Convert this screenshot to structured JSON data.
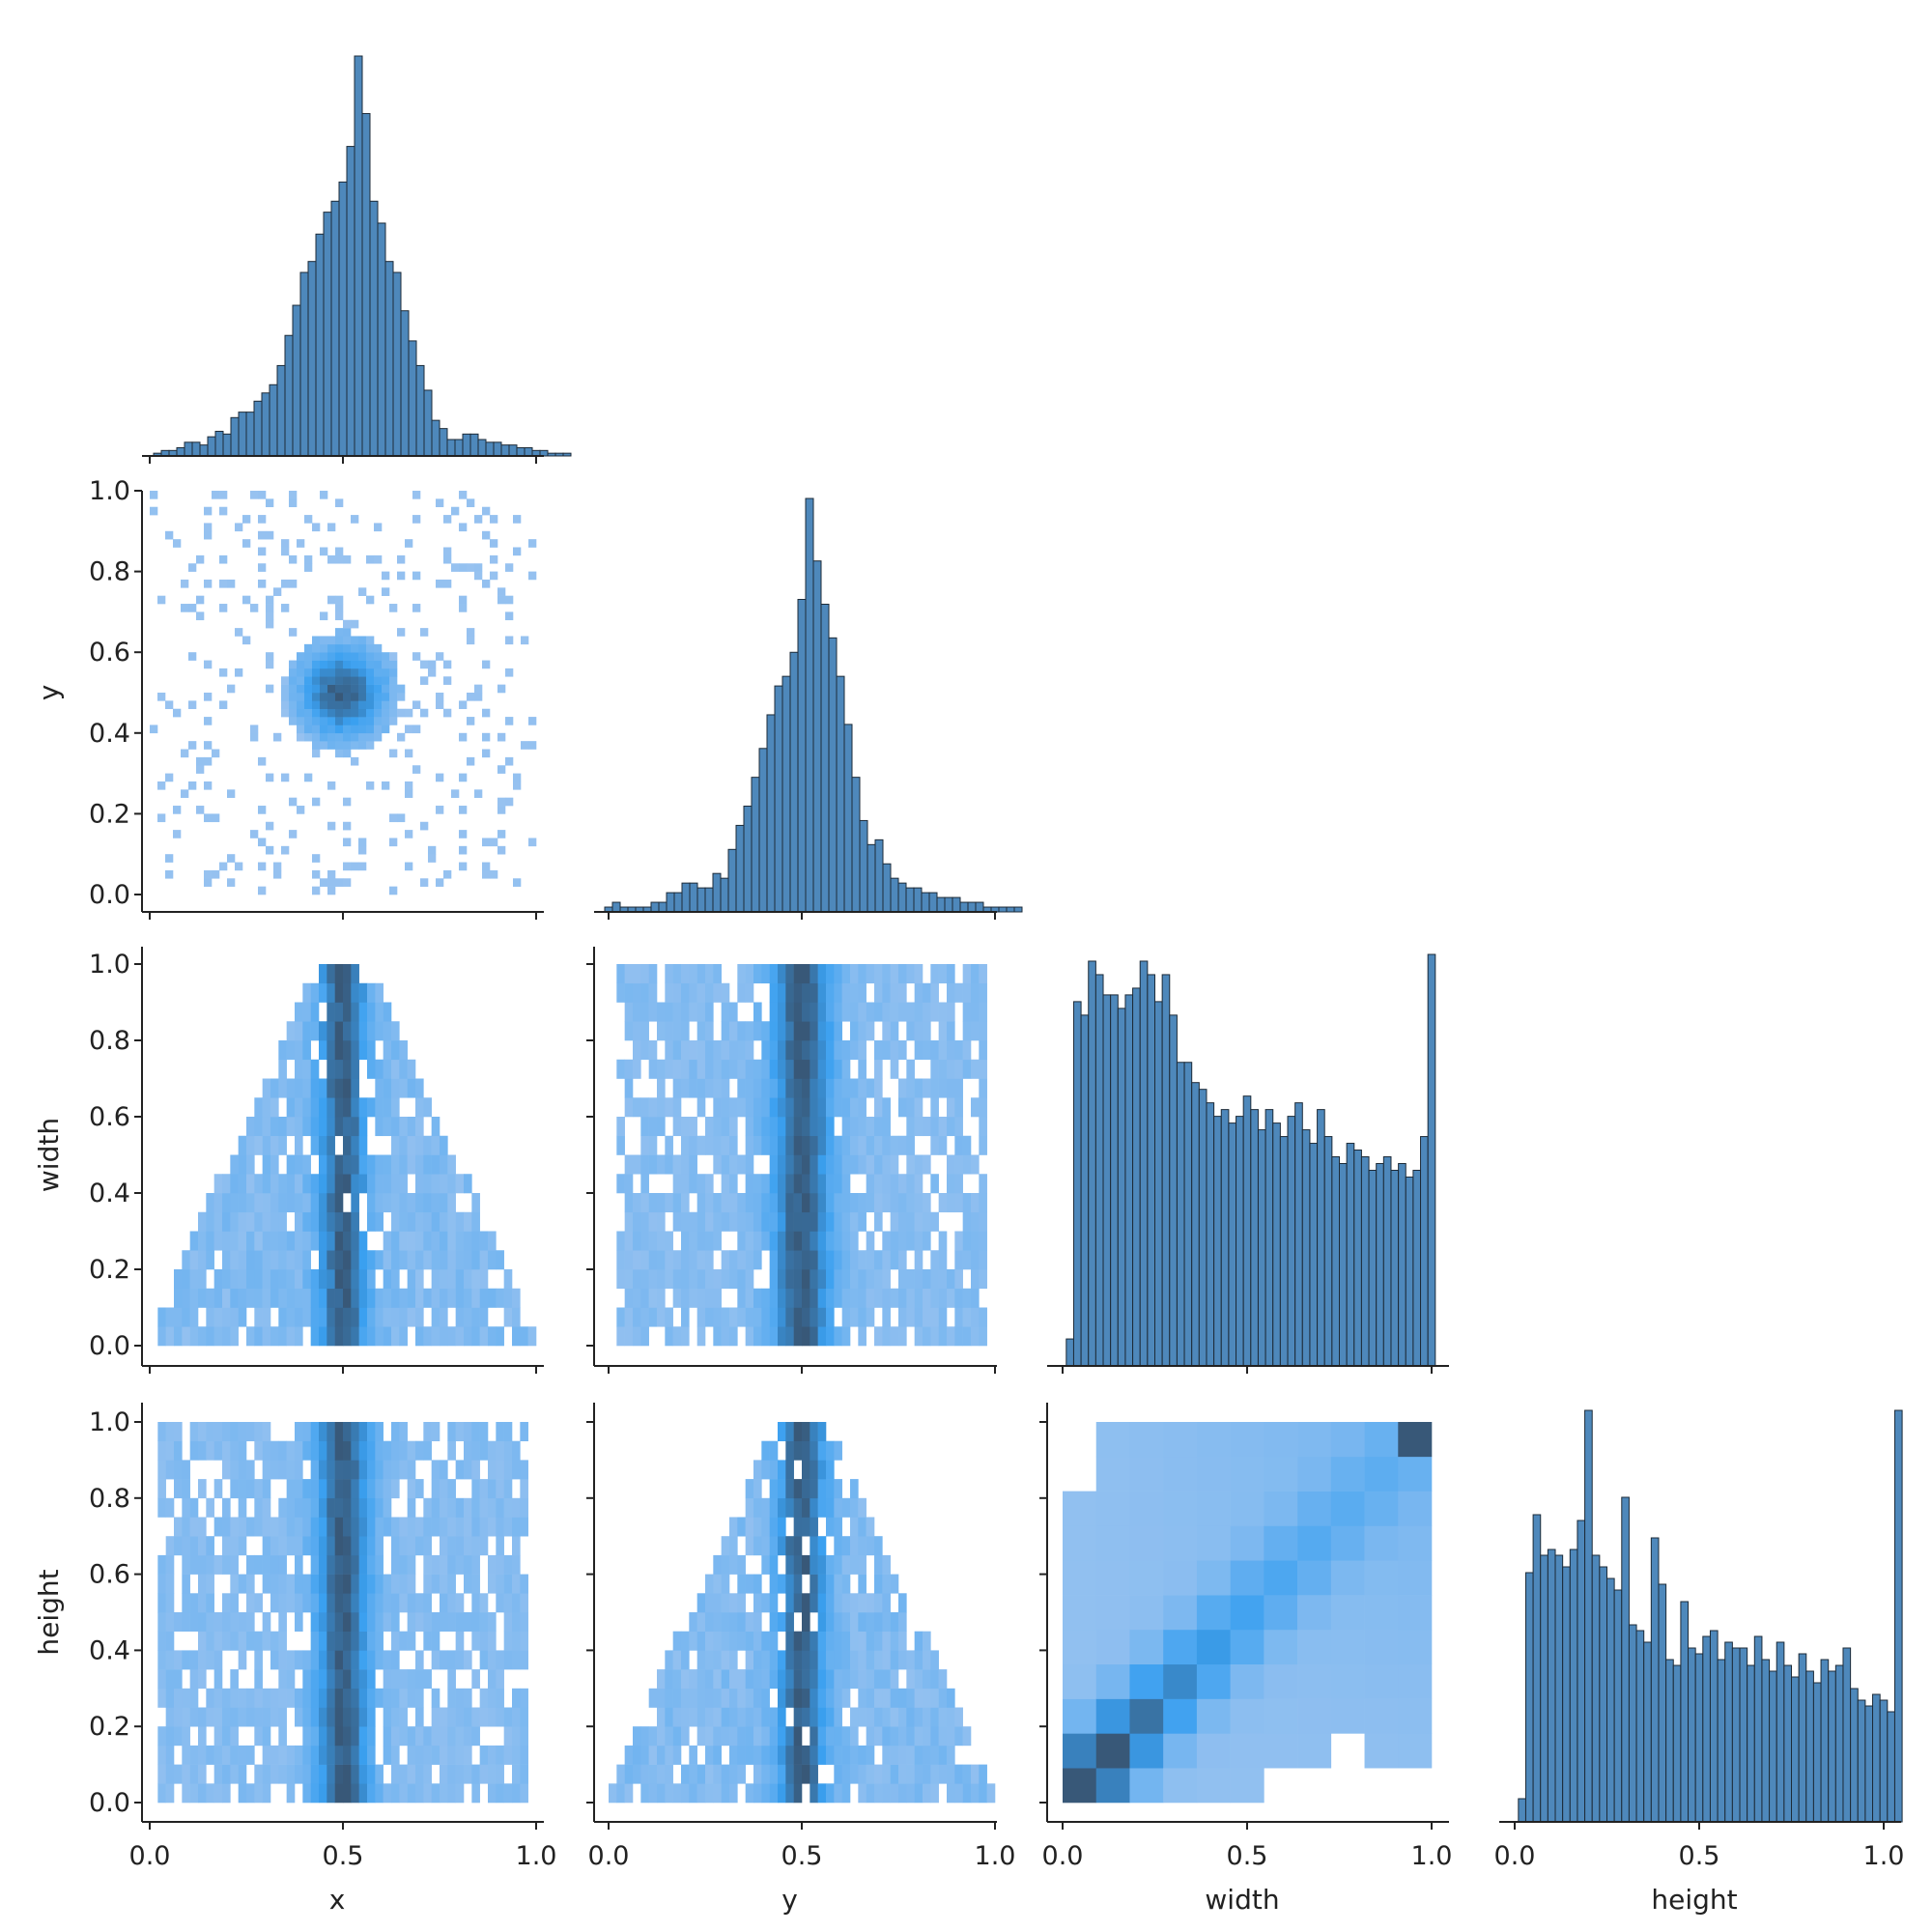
{
  "chart_data": [
    {
      "type": "bar",
      "panel": "x",
      "xlabel": "x",
      "xticks": [
        "0.0",
        "0.5",
        "1.0"
      ],
      "xlim": [
        0,
        1
      ],
      "bins": {
        "start": 0.0,
        "width": 0.02
      },
      "values": [
        0,
        1,
        2,
        2,
        3,
        5,
        5,
        4,
        7,
        9,
        8,
        14,
        16,
        16,
        20,
        23,
        26,
        33,
        44,
        55,
        67,
        71,
        81,
        89,
        93,
        100,
        113,
        146,
        125,
        93,
        85,
        71,
        67,
        53,
        42,
        33,
        24,
        13,
        10,
        6,
        6,
        8,
        8,
        6,
        5,
        5,
        4,
        4,
        3,
        3,
        2,
        2,
        1,
        1,
        1
      ]
    },
    {
      "type": "bar",
      "panel": "y",
      "xlabel": "y",
      "xticks": [
        "0.0",
        "0.5",
        "1.0"
      ],
      "xlim": [
        0,
        1
      ],
      "bins": {
        "start": 0.0,
        "width": 0.02
      },
      "values": [
        1,
        2,
        1,
        1,
        1,
        1,
        2,
        2,
        4,
        4,
        6,
        6,
        5,
        5,
        8,
        7,
        13,
        18,
        22,
        28,
        34,
        41,
        47,
        49,
        54,
        65,
        86,
        73,
        64,
        57,
        49,
        39,
        28,
        19,
        14,
        15,
        10,
        7,
        6,
        5,
        5,
        4,
        4,
        3,
        3,
        3,
        2,
        2,
        2,
        1,
        1,
        1,
        1,
        1
      ]
    },
    {
      "type": "bar",
      "panel": "width",
      "xlabel": "width",
      "xticks": [
        "0.0",
        "0.5",
        "1.0"
      ],
      "xlim": [
        0,
        1
      ],
      "bins": {
        "start": 0.0,
        "width": 0.02
      },
      "values": [
        0,
        4,
        54,
        52,
        60,
        58,
        55,
        55,
        53,
        55,
        56,
        60,
        58,
        54,
        58,
        52,
        45,
        45,
        42,
        41,
        39,
        37,
        38,
        36,
        37,
        40,
        38,
        35,
        38,
        36,
        34,
        37,
        39,
        35,
        33,
        38,
        34,
        31,
        30,
        33,
        32,
        31,
        29,
        30,
        31,
        29,
        30,
        28,
        29,
        34,
        61
      ]
    },
    {
      "type": "bar",
      "panel": "height",
      "xlabel": "height",
      "xticks": [
        "0.0",
        "0.5",
        "1.0"
      ],
      "xlim": [
        0,
        1
      ],
      "bins": {
        "start": 0.0,
        "width": 0.02
      },
      "values": [
        0,
        4,
        43,
        53,
        46,
        47,
        46,
        44,
        47,
        52,
        71,
        46,
        44,
        42,
        40,
        56,
        34,
        33,
        31,
        49,
        41,
        28,
        27,
        38,
        30,
        29,
        32,
        33,
        28,
        31,
        30,
        30,
        27,
        32,
        28,
        26,
        31,
        27,
        25,
        29,
        26,
        24,
        28,
        26,
        27,
        30,
        23,
        21,
        20,
        22,
        21,
        19,
        71
      ]
    },
    {
      "type": "heatmap",
      "panel": "y vs x",
      "xlabel": "",
      "ylabel": "y",
      "xlim": [
        0,
        1
      ],
      "ylim": [
        0,
        1
      ],
      "yticks": [
        "0.0",
        "0.2",
        "0.4",
        "0.6",
        "0.8",
        "1.0"
      ],
      "description": "2D histogram of y against x, density concentrated around (0.5, 0.5)"
    },
    {
      "type": "heatmap",
      "panel": "width vs x",
      "ylabel": "width",
      "xlim": [
        0,
        1
      ],
      "ylim": [
        0,
        1
      ],
      "yticks": [
        "0.0",
        "0.2",
        "0.4",
        "0.6",
        "0.8",
        "1.0"
      ],
      "description": "triangular 2D histogram: spread in x narrows as width increases"
    },
    {
      "type": "heatmap",
      "panel": "width vs y",
      "xlim": [
        0,
        1
      ],
      "ylim": [
        0,
        1
      ],
      "description": "2D histogram of width against y"
    },
    {
      "type": "heatmap",
      "panel": "height vs x",
      "ylabel": "height",
      "xlabel": "x",
      "xticks": [
        "0.0",
        "0.5",
        "1.0"
      ],
      "xlim": [
        0,
        1
      ],
      "ylim": [
        0,
        1
      ],
      "yticks": [
        "0.0",
        "0.2",
        "0.4",
        "0.6",
        "0.8",
        "1.0"
      ],
      "description": "2D histogram of height against x"
    },
    {
      "type": "heatmap",
      "panel": "height vs y",
      "xlabel": "y",
      "xticks": [
        "0.0",
        "0.5",
        "1.0"
      ],
      "xlim": [
        0,
        1
      ],
      "ylim": [
        0,
        1
      ],
      "description": "triangular 2D histogram: spread in y narrows as height increases"
    },
    {
      "type": "heatmap",
      "panel": "height vs width",
      "xlabel": "width",
      "xticks": [
        "0.0",
        "0.5",
        "1.0"
      ],
      "xlim": [
        0,
        1
      ],
      "ylim": [
        0,
        1
      ],
      "description": "coarse 2D histogram of height against width, dense along the diagonal and at (1,1)"
    }
  ],
  "colors": {
    "bar": "#4e88bb",
    "bar_edge": "#1d2b38",
    "heat_low": "#a8c8f0",
    "heat_mid": "#3aa0f0",
    "heat_high": "#385878",
    "axis": "#222222",
    "background": "#ffffff"
  }
}
